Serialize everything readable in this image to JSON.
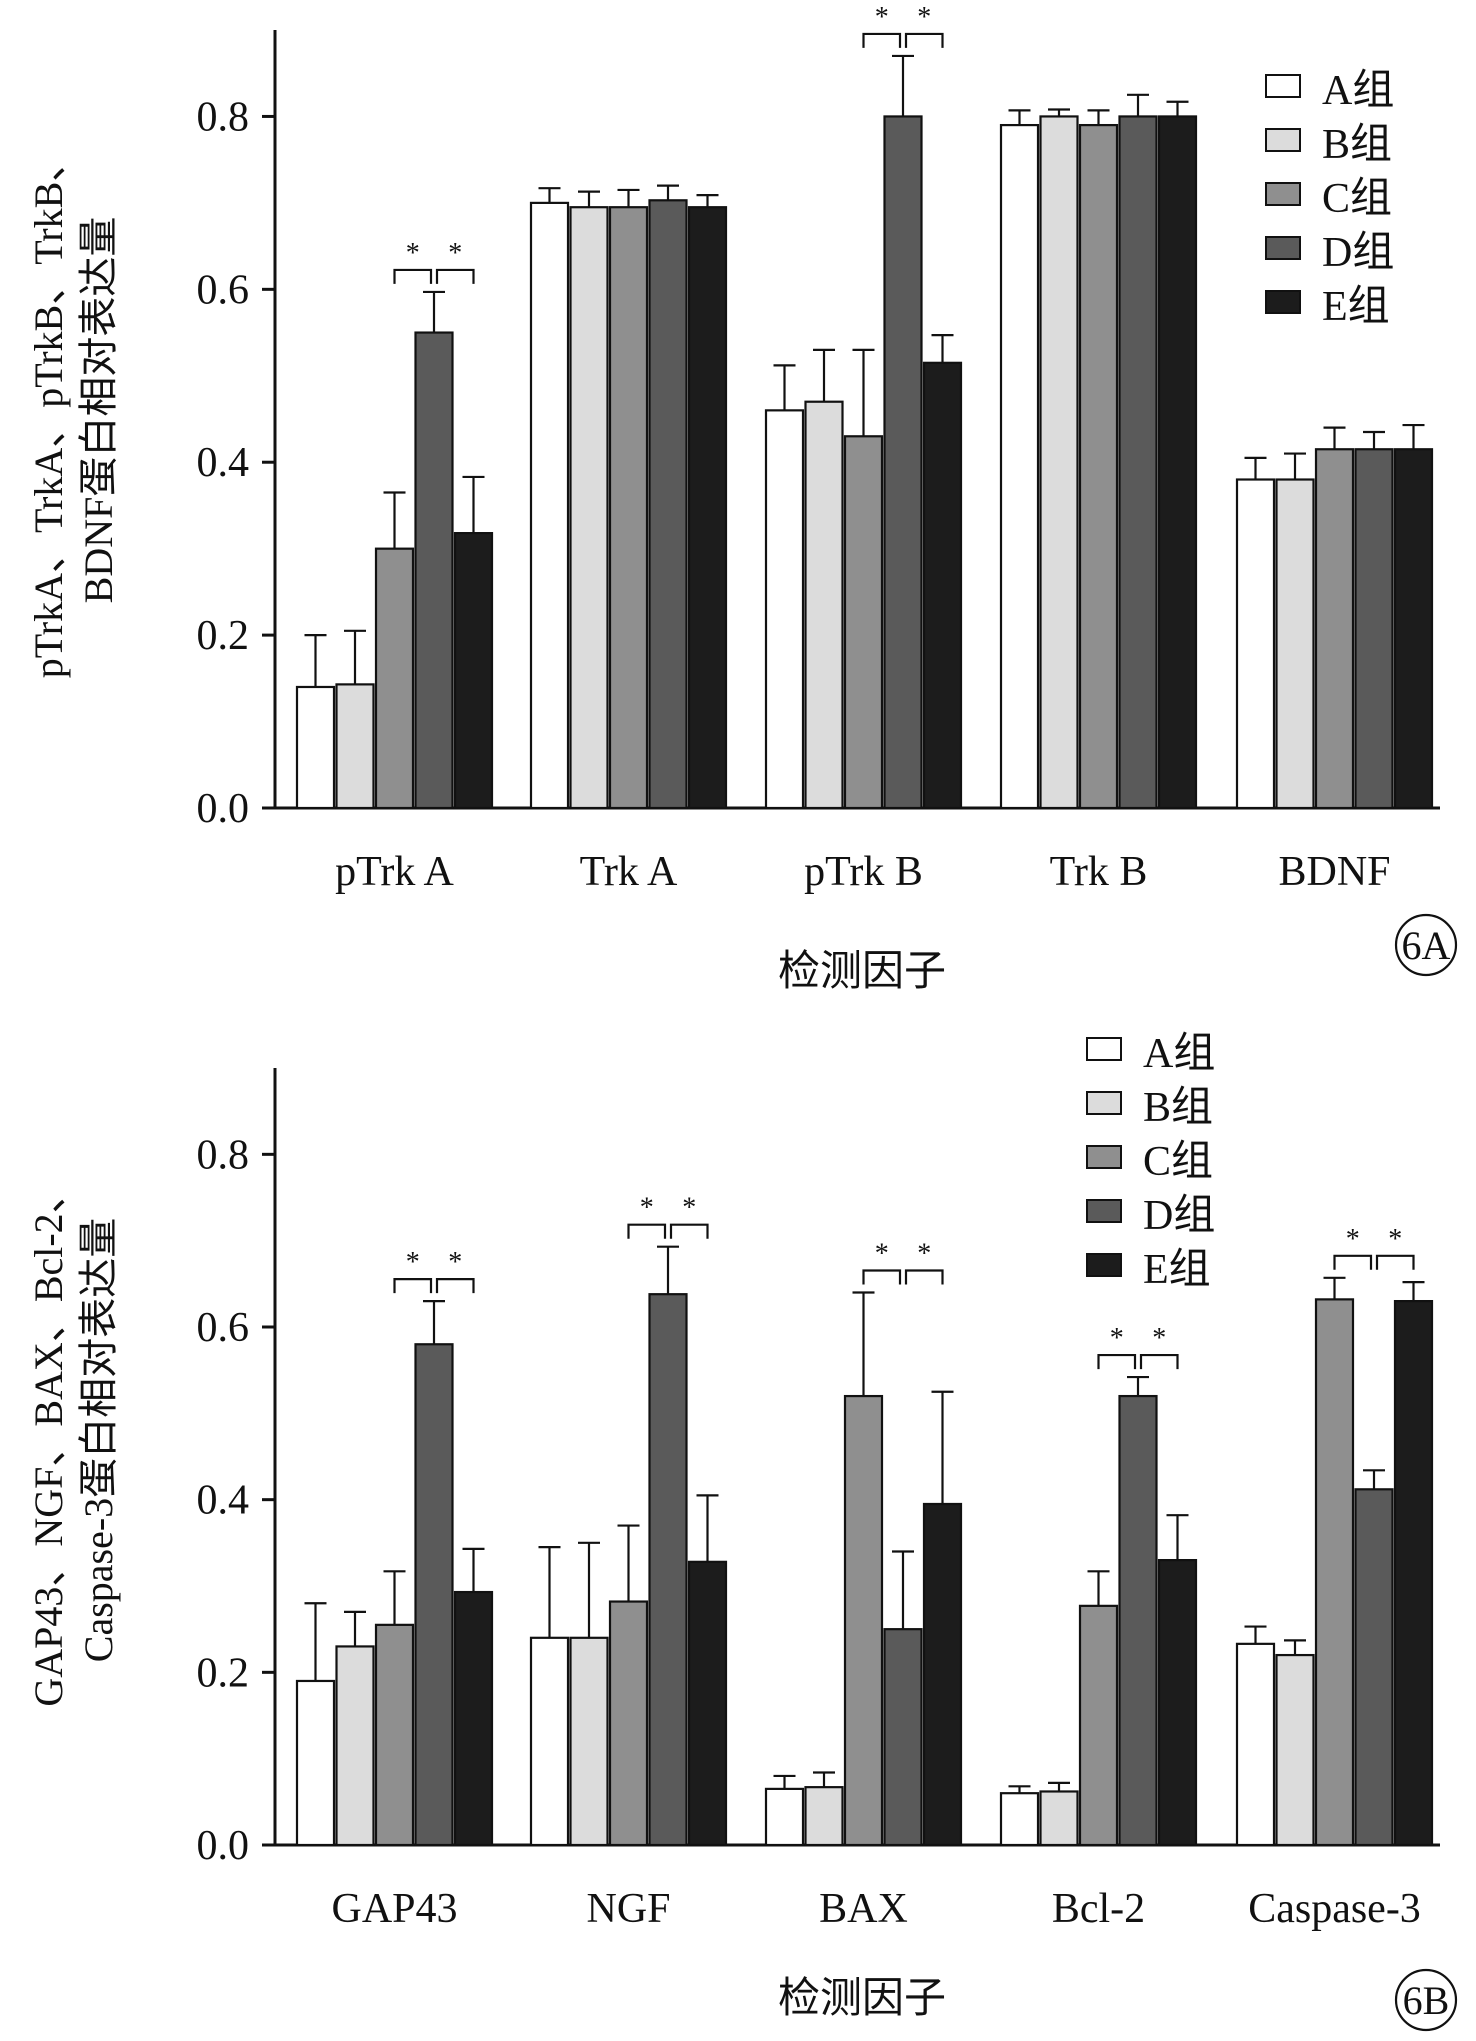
{
  "chart_data": [
    {
      "type": "bar",
      "panel_label": "6A",
      "xlabel": "检测因子",
      "ylabel_lines": [
        "pTrkA、TrkA、pTrkB、TrkB、",
        "BDNF蛋白相对表达量"
      ],
      "ylim": [
        0,
        0.9
      ],
      "yticks": [
        0.0,
        0.2,
        0.4,
        0.6,
        0.8
      ],
      "ytick_labels": [
        "0.0",
        "0.2",
        "0.4",
        "0.6",
        "0.8"
      ],
      "legend_position": "top-right",
      "categories": [
        "pTrk A",
        "Trk A",
        "pTrk B",
        "Trk B",
        "BDNF"
      ],
      "series": [
        {
          "name": "A组",
          "values": [
            0.14,
            0.7,
            0.46,
            0.79,
            0.38
          ],
          "errors": [
            0.06,
            0.017,
            0.052,
            0.017,
            0.025
          ]
        },
        {
          "name": "B组",
          "values": [
            0.143,
            0.695,
            0.47,
            0.8,
            0.38
          ],
          "errors": [
            0.062,
            0.018,
            0.06,
            0.008,
            0.03
          ]
        },
        {
          "name": "C组",
          "values": [
            0.3,
            0.695,
            0.43,
            0.79,
            0.415
          ],
          "errors": [
            0.065,
            0.02,
            0.1,
            0.017,
            0.025
          ]
        },
        {
          "name": "D组",
          "values": [
            0.55,
            0.703,
            0.8,
            0.8,
            0.415
          ],
          "errors": [
            0.047,
            0.017,
            0.07,
            0.025,
            0.02
          ]
        },
        {
          "name": "E组",
          "values": [
            0.318,
            0.695,
            0.515,
            0.8,
            0.415
          ],
          "errors": [
            0.065,
            0.014,
            0.032,
            0.017,
            0.028
          ]
        }
      ],
      "significance": [
        {
          "category": 0,
          "from": 2,
          "to": 3,
          "label": "*"
        },
        {
          "category": 0,
          "from": 3,
          "to": 4,
          "label": "*"
        },
        {
          "category": 2,
          "from": 2,
          "to": 3,
          "label": "*"
        },
        {
          "category": 2,
          "from": 3,
          "to": 4,
          "label": "*"
        }
      ]
    },
    {
      "type": "bar",
      "panel_label": "6B",
      "xlabel": "检测因子",
      "ylabel_lines": [
        "GAP43、NGF、BAX、Bcl-2、",
        "Caspase-3蛋白相对表达量"
      ],
      "ylim": [
        0,
        0.9
      ],
      "yticks": [
        0.0,
        0.2,
        0.4,
        0.6,
        0.8
      ],
      "ytick_labels": [
        "0.0",
        "0.2",
        "0.4",
        "0.6",
        "0.8"
      ],
      "legend_position": "top-right",
      "categories": [
        "GAP43",
        "NGF",
        "BAX",
        "Bcl-2",
        "Caspase-3"
      ],
      "series": [
        {
          "name": "A组",
          "values": [
            0.19,
            0.24,
            0.065,
            0.06,
            0.233
          ],
          "errors": [
            0.09,
            0.105,
            0.015,
            0.008,
            0.02
          ]
        },
        {
          "name": "B组",
          "values": [
            0.23,
            0.24,
            0.067,
            0.062,
            0.22
          ],
          "errors": [
            0.04,
            0.11,
            0.017,
            0.01,
            0.017
          ]
        },
        {
          "name": "C组",
          "values": [
            0.255,
            0.282,
            0.52,
            0.277,
            0.632
          ],
          "errors": [
            0.062,
            0.088,
            0.12,
            0.04,
            0.025
          ]
        },
        {
          "name": "D组",
          "values": [
            0.58,
            0.638,
            0.25,
            0.52,
            0.412
          ],
          "errors": [
            0.05,
            0.055,
            0.09,
            0.022,
            0.022
          ]
        },
        {
          "name": "E组",
          "values": [
            0.293,
            0.328,
            0.395,
            0.33,
            0.63
          ],
          "errors": [
            0.05,
            0.077,
            0.13,
            0.052,
            0.022
          ]
        }
      ],
      "significance": [
        {
          "category": 0,
          "from": 2,
          "to": 3,
          "label": "*"
        },
        {
          "category": 0,
          "from": 3,
          "to": 4,
          "label": "*"
        },
        {
          "category": 1,
          "from": 2,
          "to": 3,
          "label": "*"
        },
        {
          "category": 1,
          "from": 3,
          "to": 4,
          "label": "*"
        },
        {
          "category": 2,
          "from": 2,
          "to": 3,
          "label": "*"
        },
        {
          "category": 2,
          "from": 3,
          "to": 4,
          "label": "*"
        },
        {
          "category": 3,
          "from": 2,
          "to": 3,
          "label": "*"
        },
        {
          "category": 3,
          "from": 3,
          "to": 4,
          "label": "*"
        },
        {
          "category": 4,
          "from": 2,
          "to": 3,
          "label": "*"
        },
        {
          "category": 4,
          "from": 3,
          "to": 4,
          "label": "*"
        }
      ]
    }
  ],
  "colors": {
    "A组": "#ffffff",
    "B组": "#dcdcdc",
    "C组": "#8f8f8f",
    "D组": "#5a5a5a",
    "E组": "#1c1c1c"
  }
}
